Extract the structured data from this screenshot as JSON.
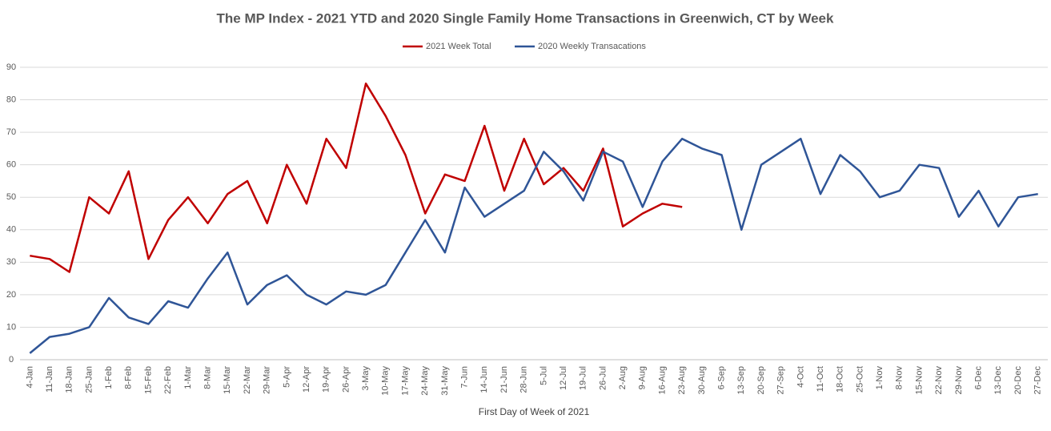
{
  "chart_data": {
    "type": "line",
    "title": "The MP Index - 2021 YTD and 2020 Single Family Home Transactions  in Greenwich, CT by Week",
    "x_label": "First Day of Week of 2021",
    "categories": [
      "4-Jan",
      "11-Jan",
      "18-Jan",
      "25-Jan",
      "1-Feb",
      "8-Feb",
      "15-Feb",
      "22-Feb",
      "1-Mar",
      "8-Mar",
      "15-Mar",
      "22-Mar",
      "29-Mar",
      "5-Apr",
      "12-Apr",
      "19-Apr",
      "26-Apr",
      "3-May",
      "10-May",
      "17-May",
      "24-May",
      "31-May",
      "7-Jun",
      "14-Jun",
      "21-Jun",
      "28-Jun",
      "5-Jul",
      "12-Jul",
      "19-Jul",
      "26-Jul",
      "2-Aug",
      "9-Aug",
      "16-Aug",
      "23-Aug",
      "30-Aug",
      "6-Sep",
      "13-Sep",
      "20-Sep",
      "27-Sep",
      "4-Oct",
      "11-Oct",
      "18-Oct",
      "25-Oct",
      "1-Nov",
      "8-Nov",
      "15-Nov",
      "22-Nov",
      "29-Nov",
      "6-Dec",
      "13-Dec",
      "20-Dec",
      "27-Dec"
    ],
    "series": [
      {
        "name": "2021 Week Total",
        "color": "#c00000",
        "values": [
          32,
          31,
          27,
          50,
          45,
          58,
          31,
          43,
          50,
          42,
          51,
          55,
          42,
          60,
          48,
          68,
          59,
          85,
          75,
          63,
          45,
          57,
          55,
          72,
          52,
          68,
          54,
          59,
          52,
          65,
          41,
          45,
          48,
          47,
          null,
          null,
          null,
          null,
          null,
          null,
          null,
          null,
          null,
          null,
          null,
          null,
          null,
          null,
          null,
          null,
          null,
          null
        ]
      },
      {
        "name": "2020 Weekly Transacations",
        "color": "#2f5597",
        "values": [
          2,
          7,
          8,
          10,
          19,
          13,
          11,
          18,
          16,
          25,
          33,
          17,
          23,
          26,
          20,
          17,
          21,
          20,
          23,
          33,
          43,
          33,
          53,
          44,
          48,
          52,
          64,
          58,
          49,
          64,
          61,
          47,
          61,
          68,
          65,
          63,
          40,
          60,
          64,
          68,
          51,
          63,
          58,
          50,
          52,
          60,
          59,
          44,
          52,
          41,
          50,
          51
        ]
      }
    ],
    "ylim": [
      0,
      90
    ],
    "yticks": [
      0,
      10,
      20,
      30,
      40,
      50,
      60,
      70,
      80,
      90
    ],
    "grid": true,
    "legend": "top"
  }
}
